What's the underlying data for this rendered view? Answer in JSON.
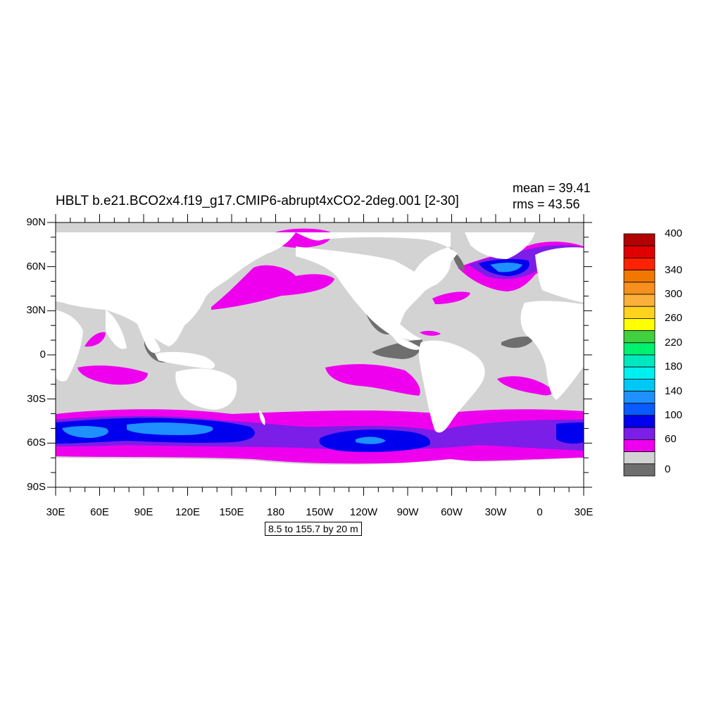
{
  "title": "HBLT b.e21.BCO2x4.f19_g17.CMIP6-abrupt4xCO2-2deg.001 [2-30]",
  "stats": {
    "mean": "mean = 39.41",
    "rms": "rms = 43.56"
  },
  "contour_info": "8.5 to 155.7 by 20 m",
  "axes": {
    "y_ticks": [
      "90N",
      "60N",
      "30N",
      "0",
      "30S",
      "60S",
      "90S"
    ],
    "x_ticks": [
      "30E",
      "60E",
      "90E",
      "120E",
      "150E",
      "180",
      "150W",
      "120W",
      "90W",
      "60W",
      "30W",
      "0",
      "30E"
    ]
  },
  "colorbar": {
    "labels": [
      "400",
      "340",
      "300",
      "260",
      "220",
      "180",
      "140",
      "100",
      "60",
      "0"
    ],
    "colors": [
      "#b30000",
      "#e00000",
      "#ff2200",
      "#f07800",
      "#f7901e",
      "#fbb03b",
      "#ffd21e",
      "#ffff00",
      "#40d040",
      "#00f070",
      "#00e8c0",
      "#00f0f0",
      "#00c8f5",
      "#1e90ff",
      "#0a5aff",
      "#0000ee",
      "#7a1ee8",
      "#ee00ee",
      "#d3d3d3",
      "#6e6e6e"
    ]
  },
  "colors": {
    "land": "#ffffff",
    "ocean_low": "#d3d3d3",
    "ocean_min": "#6e6e6e",
    "ocean_mid": "#ee00ee",
    "ocean_high": "#7a1ee8",
    "ocean_higher": "#0000ee",
    "ocean_highest": "#1e90ff"
  }
}
